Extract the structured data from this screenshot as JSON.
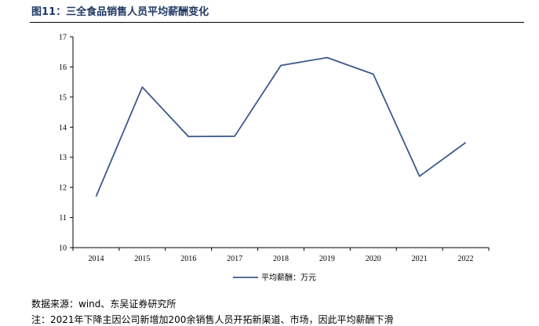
{
  "figure": {
    "title": "图11：三全食品销售人员平均薪酬变化",
    "source": "数据来源：wind、东吴证券研究所",
    "note": "注：2021年下降主因公司新增加200余销售人员开拓新渠道、市场，因此平均薪酬下滑"
  },
  "colors": {
    "line": "#3b5a8c",
    "title": "#1f3864"
  },
  "chart_data": {
    "type": "line",
    "categories": [
      "2014",
      "2015",
      "2016",
      "2017",
      "2018",
      "2019",
      "2020",
      "2021",
      "2022"
    ],
    "series": [
      {
        "name": "平均薪酬：万元",
        "values": [
          11.7,
          15.33,
          13.69,
          13.7,
          16.05,
          16.31,
          15.76,
          12.37,
          13.49
        ]
      }
    ],
    "yticks": [
      "17",
      "16",
      "15",
      "14",
      "13",
      "12",
      "11",
      "10"
    ],
    "ylim": [
      10,
      17
    ],
    "legend_position": "bottom-center",
    "grid": false
  }
}
